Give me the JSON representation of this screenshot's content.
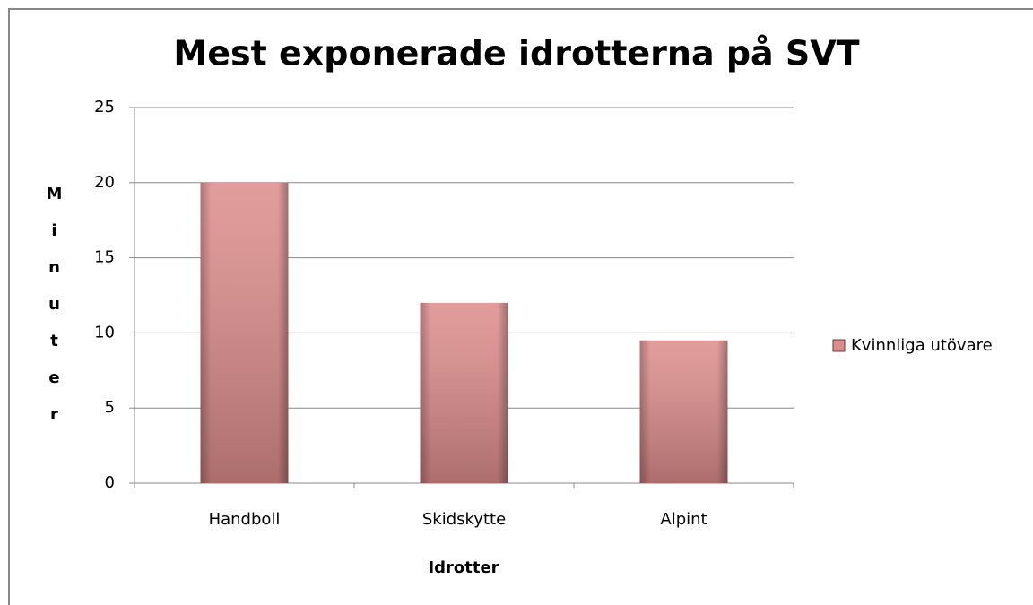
{
  "chart_data": {
    "type": "bar",
    "title": "Mest exponerade idrotterna på SVT",
    "x_label": "Idrotter",
    "y_label": "Minuter",
    "categories": [
      "Handboll",
      "Skidskytte",
      "Alpint"
    ],
    "series": [
      {
        "name": "Kvinnliga utövare",
        "color": "#dc8c8b",
        "values": [
          20,
          12,
          9.5
        ]
      }
    ],
    "ylim": [
      0,
      25
    ],
    "yticks": [
      0,
      5,
      10,
      15,
      20,
      25
    ],
    "grid": true,
    "legend": "right"
  }
}
